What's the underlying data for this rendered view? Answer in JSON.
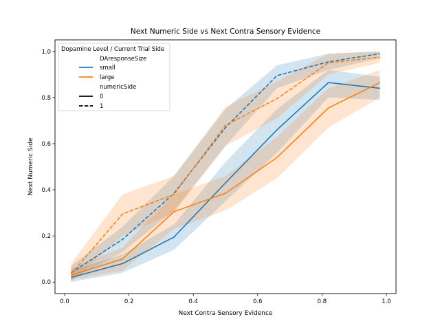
{
  "chart_data": {
    "type": "line",
    "title": "Next Numeric Side vs Next Contra Sensory Evidence",
    "xlabel": "Next Contra Sensory Evidence",
    "ylabel": "Next Numeric Side",
    "xlim": [
      -0.03,
      1.03
    ],
    "ylim": [
      -0.05,
      1.05
    ],
    "xticks": [
      0.0,
      0.2,
      0.4,
      0.6,
      0.8,
      1.0
    ],
    "xtick_labels": [
      "0.0",
      "0.2",
      "0.4",
      "0.6",
      "0.8",
      "1.0"
    ],
    "yticks": [
      0.0,
      0.2,
      0.4,
      0.6,
      0.8,
      1.0
    ],
    "ytick_labels": [
      "0.0",
      "0.2",
      "0.4",
      "0.6",
      "0.8",
      "1.0"
    ],
    "grid": false,
    "legend": {
      "placement": "top-left",
      "title": "Dopamine Level / Current Trial Side",
      "hue_title": "DAresponseSize",
      "hue_items": [
        {
          "label": "small",
          "color": "#1f77b4"
        },
        {
          "label": "large",
          "color": "#ff7f0e"
        }
      ],
      "style_title": "numericSide",
      "style_items": [
        {
          "label": "0",
          "dash": "solid"
        },
        {
          "label": "1",
          "dash": "dashed"
        }
      ]
    },
    "x": [
      0.02,
      0.18,
      0.34,
      0.5,
      0.66,
      0.82,
      0.98
    ],
    "series": [
      {
        "hue": "small",
        "style": "0",
        "color": "#1f77b4",
        "dashed": false,
        "values": [
          0.02,
          0.08,
          0.195,
          0.43,
          0.66,
          0.865,
          0.84
        ],
        "ci_low": [
          0.0,
          0.04,
          0.14,
          0.35,
          0.56,
          0.8,
          0.79
        ],
        "ci_high": [
          0.05,
          0.12,
          0.25,
          0.52,
          0.75,
          0.92,
          0.89
        ]
      },
      {
        "hue": "small",
        "style": "1",
        "color": "#1f77b4",
        "dashed": true,
        "values": [
          0.04,
          0.185,
          0.385,
          0.67,
          0.895,
          0.955,
          0.99
        ],
        "ci_low": [
          0.01,
          0.13,
          0.31,
          0.59,
          0.84,
          0.92,
          0.97
        ],
        "ci_high": [
          0.07,
          0.24,
          0.46,
          0.75,
          0.94,
          0.99,
          1.0
        ]
      },
      {
        "hue": "large",
        "style": "0",
        "color": "#ff7f0e",
        "dashed": false,
        "values": [
          0.03,
          0.1,
          0.305,
          0.385,
          0.54,
          0.755,
          0.865
        ],
        "ci_low": [
          0.01,
          0.05,
          0.23,
          0.31,
          0.45,
          0.67,
          0.8
        ],
        "ci_high": [
          0.06,
          0.15,
          0.38,
          0.46,
          0.63,
          0.84,
          0.92
        ]
      },
      {
        "hue": "large",
        "style": "1",
        "color": "#ff7f0e",
        "dashed": true,
        "values": [
          0.035,
          0.295,
          0.38,
          0.68,
          0.795,
          0.95,
          0.975
        ],
        "ci_low": [
          0.0,
          0.2,
          0.3,
          0.59,
          0.71,
          0.9,
          0.95
        ],
        "ci_high": [
          0.08,
          0.38,
          0.46,
          0.76,
          0.87,
          0.99,
          1.0
        ]
      }
    ]
  }
}
